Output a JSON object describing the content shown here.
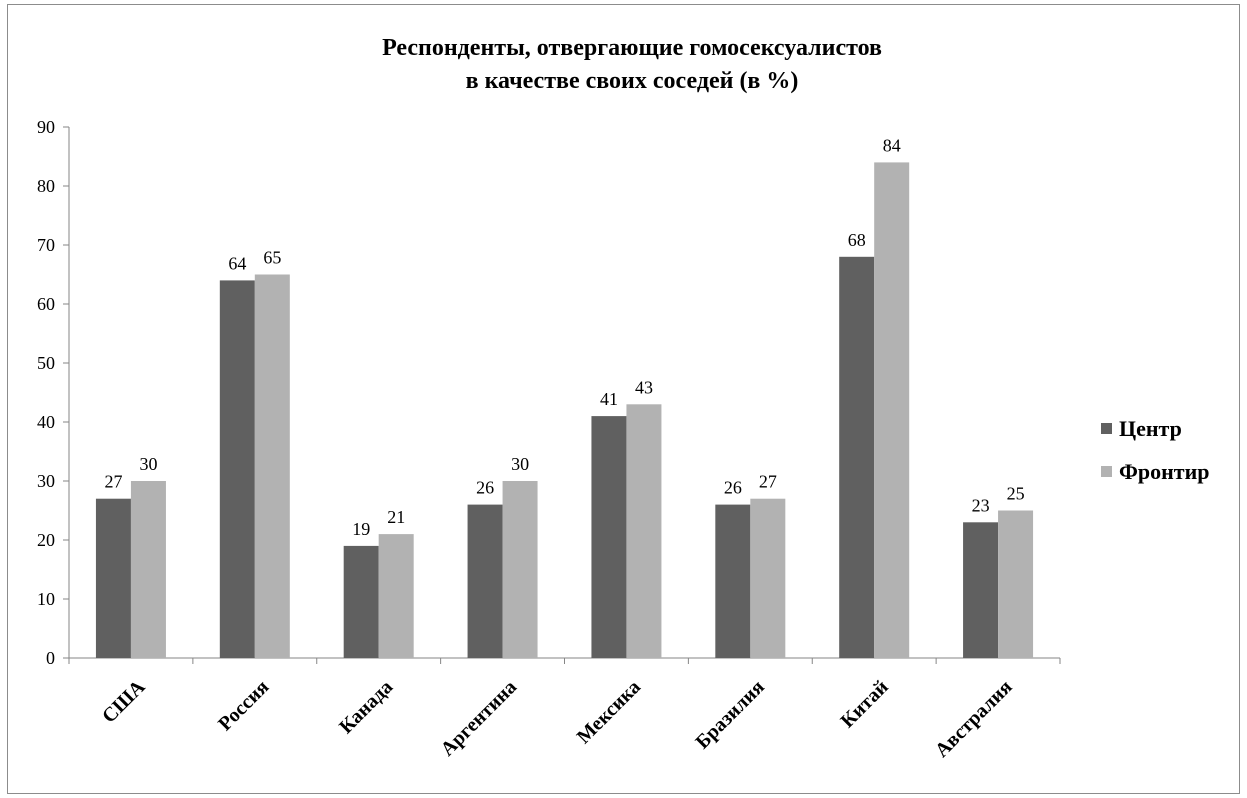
{
  "chart_data": {
    "type": "bar",
    "title_lines": [
      "Респонденты, отвергающие гомосексуалистов",
      "в качестве своих соседей (в %)"
    ],
    "xlabel": "",
    "ylabel": "",
    "categories": [
      "США",
      "Россия",
      "Канада",
      "Аргентина",
      "Мексика",
      "Бразилия",
      "Китай",
      "Австралия"
    ],
    "series": [
      {
        "name": "Центр",
        "color": "#606060",
        "values": [
          27,
          64,
          19,
          26,
          41,
          26,
          68,
          23
        ]
      },
      {
        "name": "Фронтир",
        "color": "#b2b2b2",
        "values": [
          30,
          65,
          21,
          30,
          43,
          27,
          84,
          25
        ]
      }
    ],
    "ylim": [
      0,
      90
    ],
    "yticks": [
      0,
      10,
      20,
      30,
      40,
      50,
      60,
      70,
      80,
      90
    ],
    "grid": false,
    "legend_position": "right",
    "data_labels": true
  }
}
